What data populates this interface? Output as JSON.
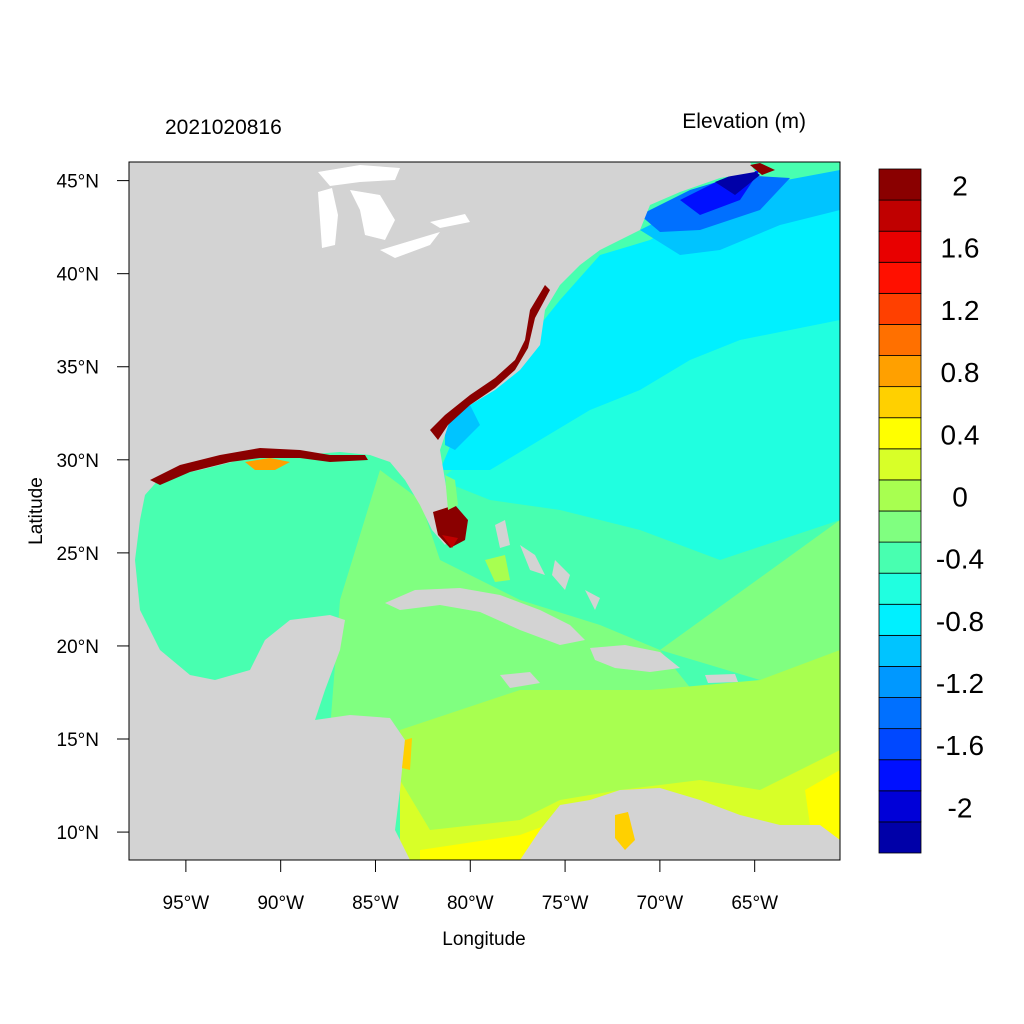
{
  "figure": {
    "timestamp": "2021020816",
    "title": "Elevation (m)",
    "xlabel": "Longitude",
    "ylabel": "Latitude",
    "colors": {
      "land": "#d3d3d3",
      "lakes": "#ffffff",
      "frame": "#000000"
    }
  },
  "map": {
    "lon_range": [
      -98,
      -60.5
    ],
    "lat_range": [
      8.5,
      46
    ],
    "x_ticks": [
      {
        "value": -95,
        "label": "95°W"
      },
      {
        "value": -90,
        "label": "90°W"
      },
      {
        "value": -85,
        "label": "85°W"
      },
      {
        "value": -80,
        "label": "80°W"
      },
      {
        "value": -75,
        "label": "75°W"
      },
      {
        "value": -70,
        "label": "70°W"
      },
      {
        "value": -65,
        "label": "65°W"
      }
    ],
    "y_ticks": [
      {
        "value": 45,
        "label": "45°N"
      },
      {
        "value": 40,
        "label": "40°N"
      },
      {
        "value": 35,
        "label": "35°N"
      },
      {
        "value": 30,
        "label": "30°N"
      },
      {
        "value": 25,
        "label": "25°N"
      },
      {
        "value": 20,
        "label": "20°N"
      },
      {
        "value": 15,
        "label": "15°N"
      },
      {
        "value": 10,
        "label": "10°N"
      }
    ]
  },
  "colorbar": {
    "levels": [
      -2.2,
      -2.0,
      -1.8,
      -1.6,
      -1.4,
      -1.2,
      -1.0,
      -0.8,
      -0.6,
      -0.4,
      -0.2,
      0,
      0.2,
      0.4,
      0.6,
      0.8,
      1.0,
      1.2,
      1.4,
      1.6,
      1.8,
      2.0,
      2.2
    ],
    "colors": [
      "#0000a8",
      "#0000d8",
      "#0010ff",
      "#0048ff",
      "#0070ff",
      "#0098ff",
      "#00c4ff",
      "#00f0ff",
      "#20ffe0",
      "#48ffb0",
      "#80ff80",
      "#a8ff50",
      "#d8ff28",
      "#ffff00",
      "#ffd000",
      "#ffa000",
      "#ff7000",
      "#ff4000",
      "#ff1000",
      "#e80000",
      "#c00000",
      "#8a0000"
    ],
    "tick_labels": [
      {
        "value": 2.0,
        "label": "2"
      },
      {
        "value": 1.6,
        "label": "1.6"
      },
      {
        "value": 1.2,
        "label": "1.2"
      },
      {
        "value": 0.8,
        "label": "0.8"
      },
      {
        "value": 0.4,
        "label": "0.4"
      },
      {
        "value": 0,
        "label": "0"
      },
      {
        "value": -0.4,
        "label": "-0.4"
      },
      {
        "value": -0.8,
        "label": "-0.8"
      },
      {
        "value": -1.2,
        "label": "-1.2"
      },
      {
        "value": -1.6,
        "label": "-1.6"
      },
      {
        "value": -2.0,
        "label": "-2"
      }
    ]
  }
}
